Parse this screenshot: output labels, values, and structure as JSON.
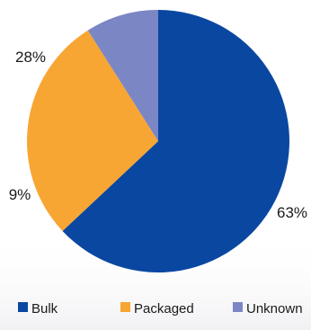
{
  "chart_data": {
    "type": "pie",
    "categories": [
      "Bulk",
      "Packaged",
      "Unknown"
    ],
    "values": [
      63,
      28,
      9
    ],
    "data_labels": [
      "63%",
      "28%",
      "9%"
    ],
    "colors": [
      "#0a47a1",
      "#f7a533",
      "#7b86c5"
    ],
    "start_angle_deg": 0,
    "direction": "clockwise",
    "legend": {
      "position": "bottom",
      "entries": [
        "Bulk",
        "Packaged",
        "Unknown"
      ]
    }
  }
}
